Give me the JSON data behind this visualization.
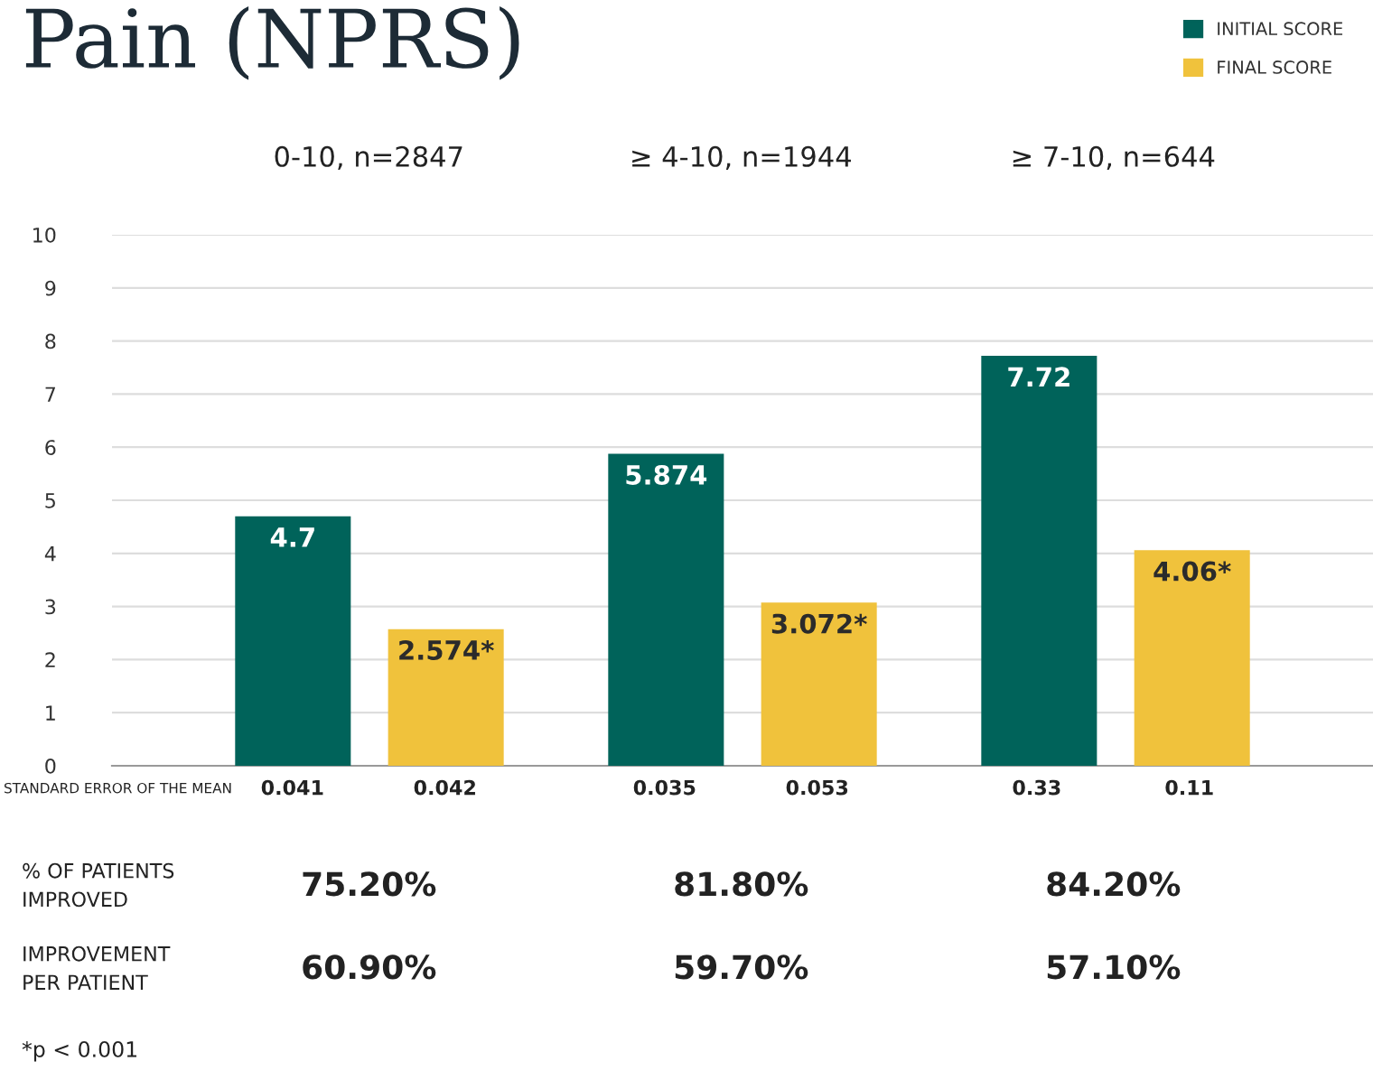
{
  "chart_data": {
    "type": "bar",
    "title": "Pain (NPRS)",
    "categories": [
      "0-10, n=2847",
      "≥ 4-10, n=1944",
      "≥ 7-10, n=644"
    ],
    "series": [
      {
        "name": "INITIAL SCORE",
        "color": "#00635a",
        "values": [
          4.7,
          5.874,
          7.72
        ],
        "value_labels": [
          "4.7",
          "5.874",
          "7.72"
        ]
      },
      {
        "name": "FINAL SCORE",
        "color": "#f0c23c",
        "values": [
          2.574,
          3.072,
          4.06
        ],
        "value_labels": [
          "2.574*",
          "3.072*",
          "4.06*"
        ]
      }
    ],
    "ylim": [
      0,
      10
    ],
    "yticks": [
      0,
      1,
      2,
      3,
      4,
      5,
      6,
      7,
      8,
      9,
      10
    ],
    "grid": "y",
    "legend": "top right",
    "annotations": [
      "STANDARD ERROR OF THE MEAN",
      "0.041",
      "0.042",
      "0.035",
      "0.053",
      "0.33",
      "0.11",
      "% OF PATIENTS\nIMPROVED",
      "75.20%",
      "81.80%",
      "84.20%",
      "IMPROVEMENT\nPER PATIENT",
      "60.90%",
      "59.70%",
      "57.10%",
      "*p < 0.001"
    ]
  }
}
